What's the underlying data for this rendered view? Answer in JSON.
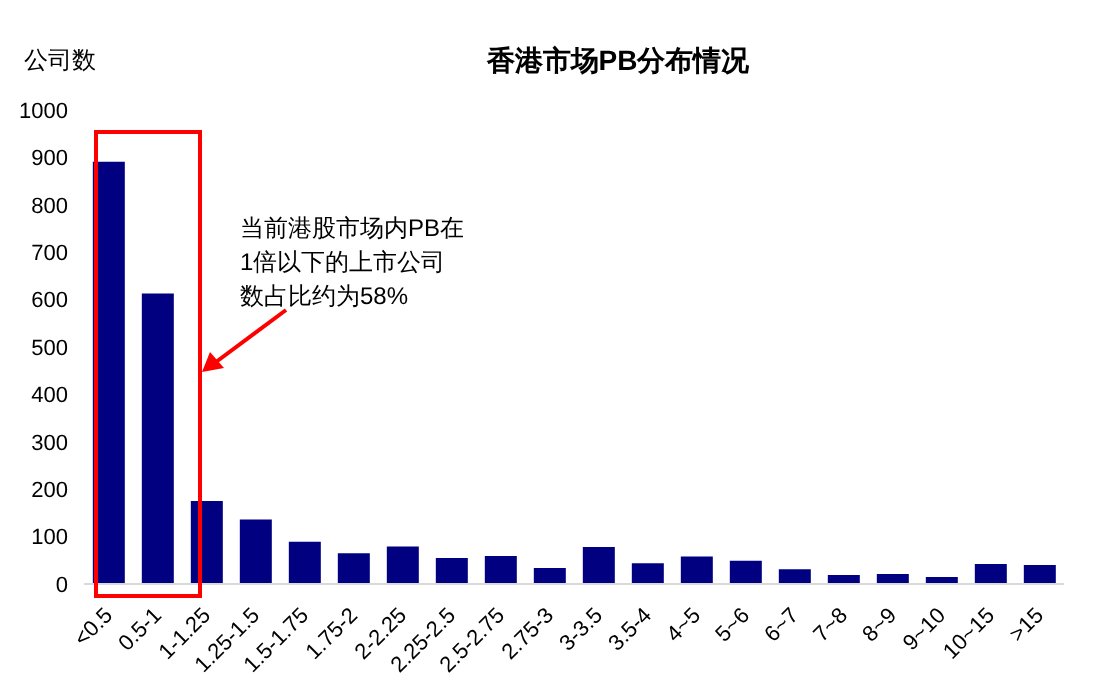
{
  "chart_data": {
    "type": "bar",
    "title": "香港市场PB分布情况",
    "ylabel": "公司数",
    "categories": [
      "<0.5",
      "0.5-1",
      "1-1.25",
      "1.25-1.5",
      "1.5-1.75",
      "1.75-2",
      "2-2.25",
      "2.25-2.5",
      "2.5-2.75",
      "2.75-3",
      "3-3.5",
      "3.5-4",
      "4~5",
      "5~6",
      "6~7",
      "7~8",
      "8~9",
      "9~10",
      "10~15",
      ">15"
    ],
    "series": [
      {
        "color": "#000080",
        "values": [
          891,
          613,
          175,
          136,
          89,
          65,
          79,
          55,
          59,
          34,
          78,
          44,
          58,
          49,
          31,
          19,
          21,
          15,
          42,
          40
        ]
      }
    ],
    "ylim": [
      0,
      1000
    ],
    "yticks": [
      0,
      100,
      200,
      300,
      400,
      500,
      600,
      700,
      800,
      900,
      1000
    ],
    "grid": false,
    "legend": false,
    "annotations": [
      "当前港股市场内PB在1倍以下的上市公司数占比约为58%"
    ]
  }
}
